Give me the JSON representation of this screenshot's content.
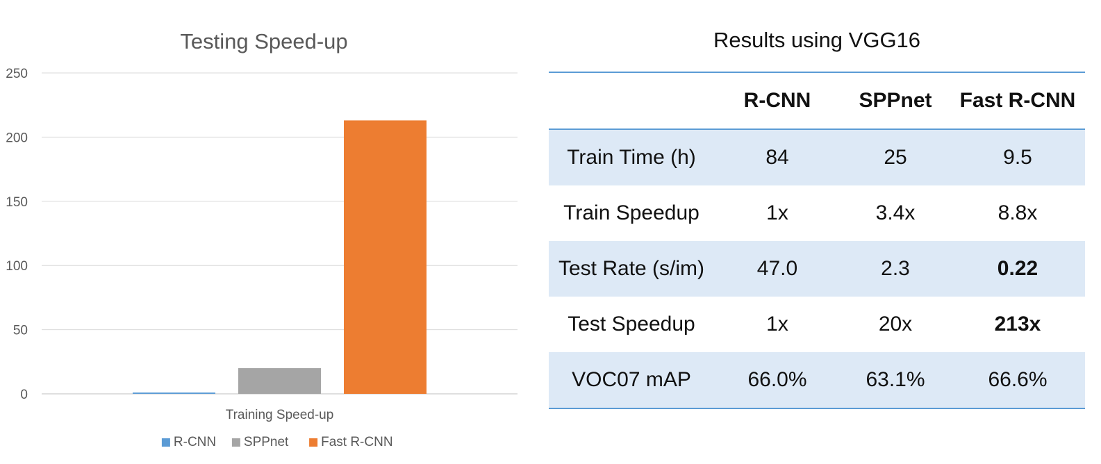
{
  "chart_data": {
    "type": "bar",
    "title": "Testing Speed-up",
    "categories": [
      "Training Speed-up"
    ],
    "xlabel": "",
    "ylabel": "",
    "ylim": [
      0,
      250
    ],
    "yticks": [
      0,
      50,
      100,
      150,
      200,
      250
    ],
    "grid": true,
    "legend_position": "bottom",
    "series": [
      {
        "name": "R-CNN",
        "values": [
          1
        ],
        "color": "#5b9bd5"
      },
      {
        "name": "SPPnet",
        "values": [
          20
        ],
        "color": "#a5a5a5"
      },
      {
        "name": "Fast R-CNN",
        "values": [
          213
        ],
        "color": "#ed7d31"
      }
    ]
  },
  "results_table": {
    "title": "Results using VGG16",
    "columns": [
      "",
      "R-CNN",
      "SPPnet",
      "Fast R-CNN"
    ],
    "rows": [
      {
        "cells": [
          "Train Time (h)",
          "84",
          "25",
          "9.5"
        ],
        "bold": [
          false,
          false,
          false,
          false
        ]
      },
      {
        "cells": [
          "Train Speedup",
          "1x",
          "3.4x",
          "8.8x"
        ],
        "bold": [
          false,
          false,
          false,
          false
        ]
      },
      {
        "cells": [
          "Test Rate (s/im)",
          "47.0",
          "2.3",
          "0.22"
        ],
        "bold": [
          false,
          false,
          false,
          true
        ]
      },
      {
        "cells": [
          "Test Speedup",
          "1x",
          "20x",
          "213x"
        ],
        "bold": [
          false,
          false,
          false,
          true
        ]
      },
      {
        "cells": [
          "VOC07 mAP",
          "66.0%",
          "63.1%",
          "66.6%"
        ],
        "bold": [
          false,
          false,
          false,
          false
        ]
      }
    ]
  }
}
